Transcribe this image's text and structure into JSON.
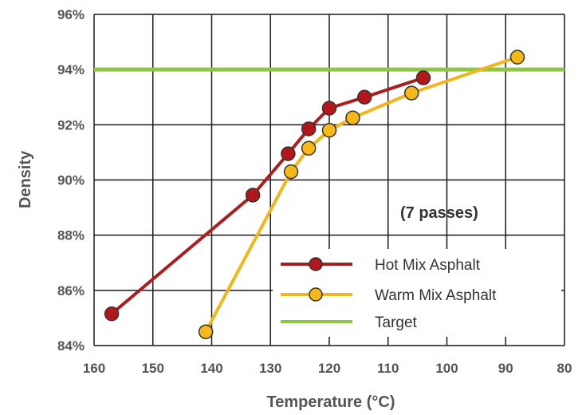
{
  "chart_data": {
    "type": "line",
    "xlabel": "Temperature (°C)",
    "ylabel": "Density",
    "xlim": [
      160,
      80
    ],
    "ylim": [
      84,
      96
    ],
    "x_ticks": [
      160,
      150,
      140,
      130,
      120,
      110,
      100,
      90,
      80
    ],
    "y_ticks": [
      84,
      86,
      88,
      90,
      92,
      94,
      96
    ],
    "x_tick_labels": [
      "160",
      "150",
      "140",
      "130",
      "120",
      "110",
      "100",
      "90",
      "80"
    ],
    "y_tick_labels": [
      "84%",
      "86%",
      "88%",
      "90%",
      "92%",
      "94%",
      "96%"
    ],
    "x_reversed": true,
    "grid": true,
    "legend_position": "bottom-right",
    "annotation": "(7 passes)",
    "series": [
      {
        "name": "Hot Mix Asphalt",
        "color": "#b3171c",
        "line_color": "#a81f1f",
        "x": [
          157,
          133,
          127,
          123.5,
          120,
          114,
          104
        ],
        "y": [
          85.15,
          89.45,
          90.95,
          91.85,
          92.6,
          93.0,
          93.7
        ]
      },
      {
        "name": "Warm Mix Asphalt",
        "color": "#f7b81a",
        "line_color": "#f2b61c",
        "x": [
          141,
          126.5,
          123.5,
          120,
          116,
          106,
          88
        ],
        "y": [
          84.5,
          90.3,
          91.15,
          91.8,
          92.25,
          93.15,
          94.45
        ]
      }
    ],
    "target": {
      "name": "Target",
      "value": 94,
      "color": "#8dc63f"
    }
  }
}
